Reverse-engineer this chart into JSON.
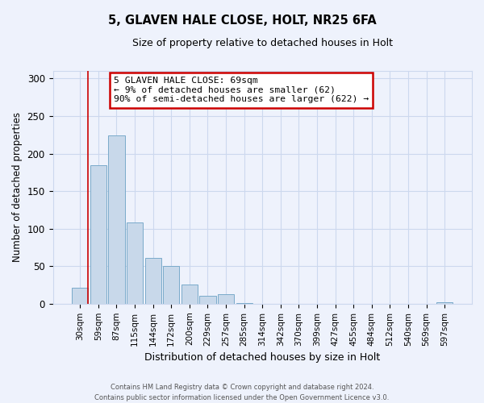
{
  "title": "5, GLAVEN HALE CLOSE, HOLT, NR25 6FA",
  "subtitle": "Size of property relative to detached houses in Holt",
  "xlabel": "Distribution of detached houses by size in Holt",
  "ylabel": "Number of detached properties",
  "bin_labels": [
    "30sqm",
    "59sqm",
    "87sqm",
    "115sqm",
    "144sqm",
    "172sqm",
    "200sqm",
    "229sqm",
    "257sqm",
    "285sqm",
    "314sqm",
    "342sqm",
    "370sqm",
    "399sqm",
    "427sqm",
    "455sqm",
    "484sqm",
    "512sqm",
    "540sqm",
    "569sqm",
    "597sqm"
  ],
  "bar_heights": [
    21,
    184,
    224,
    108,
    61,
    50,
    26,
    11,
    13,
    1,
    0,
    0,
    0,
    0,
    0,
    0,
    0,
    0,
    0,
    0,
    2
  ],
  "bar_color": "#c8d8ea",
  "bar_edgecolor": "#7aaaca",
  "grid_color": "#ccd8ee",
  "background_color": "#eef2fc",
  "annotation_title": "5 GLAVEN HALE CLOSE: 69sqm",
  "annotation_line1": "← 9% of detached houses are smaller (62)",
  "annotation_line2": "90% of semi-detached houses are larger (622) →",
  "annotation_box_color": "#ffffff",
  "annotation_border_color": "#cc0000",
  "red_line_color": "#cc0000",
  "footer1": "Contains HM Land Registry data © Crown copyright and database right 2024.",
  "footer2": "Contains public sector information licensed under the Open Government Licence v3.0.",
  "ylim": [
    0,
    310
  ],
  "yticks": [
    0,
    50,
    100,
    150,
    200,
    250,
    300
  ]
}
